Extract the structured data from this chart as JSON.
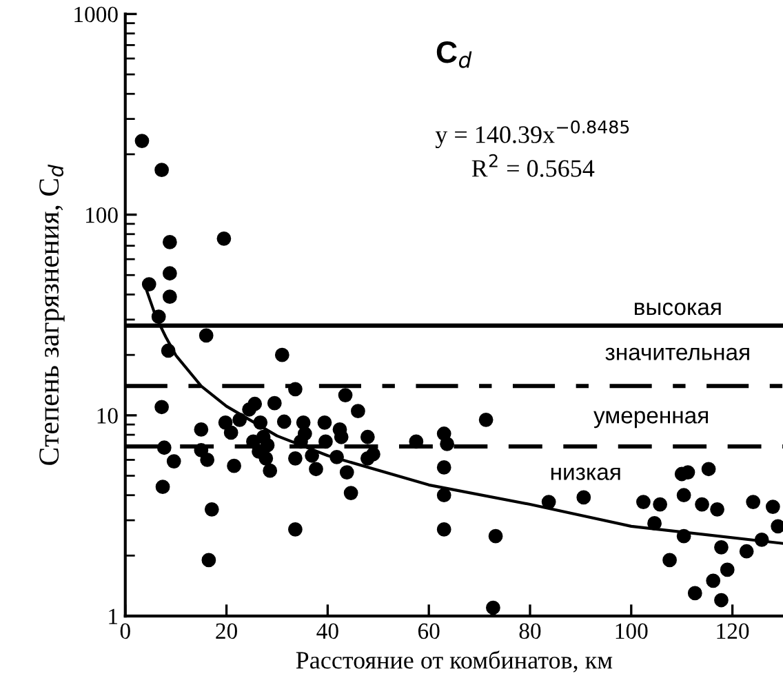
{
  "chart_data": {
    "type": "scatter",
    "title": "C$_{d}$",
    "xlabel": "Расстояние от комбинатов, км",
    "ylabel": "Степень загрязнения, C$_{d}$",
    "log": "y",
    "xlim": [
      0,
      130
    ],
    "ylim": [
      1,
      1000
    ],
    "xticks": [
      0,
      20,
      40,
      60,
      80,
      100,
      120
    ],
    "yticks": [
      1,
      10,
      100,
      1000
    ],
    "grid": false,
    "legend": false,
    "marker": "circle",
    "series": [
      {
        "color": "#000000",
        "x": [
          3.3,
          7.2,
          8.8,
          19.5,
          8.8,
          4.7,
          8.8,
          6.6,
          8.5,
          16,
          31,
          33.6,
          43.5,
          46,
          7.2,
          15,
          19.8,
          20.9,
          22.6,
          24.5,
          25.6,
          26.7,
          29.5,
          31.4,
          35.2,
          39.4,
          42.4,
          47.9,
          57.5,
          7.7,
          9.6,
          15,
          16.2,
          21.5,
          25.3,
          26.4,
          27.8,
          28.6,
          28.1,
          27.3,
          33.6,
          34.7,
          35.5,
          36.9,
          37.7,
          39.6,
          41.8,
          42.7,
          43.8,
          47.9,
          49,
          7.4,
          17.1,
          44.6,
          33.6,
          16.5,
          63,
          63.6,
          63,
          63,
          63,
          71.3,
          73.2,
          72.7,
          83.7,
          90.6,
          102.4,
          105.7,
          104.6,
          107.6,
          110,
          111.2,
          115.3,
          110.4,
          114,
          117,
          110.4,
          117.8,
          119,
          116.2,
          112.6,
          117.8,
          124.1,
          128,
          122.8,
          125.8,
          129
        ],
        "values": [
          233,
          167,
          73,
          76,
          51,
          45,
          39,
          31,
          21,
          25,
          20,
          13.5,
          12.6,
          10.5,
          11,
          8.5,
          9.2,
          8.2,
          9.5,
          10.7,
          11.4,
          9.2,
          11.5,
          9.3,
          9.2,
          9.2,
          8.5,
          7.8,
          7.4,
          6.9,
          5.9,
          6.7,
          6.0,
          5.6,
          7.4,
          6.6,
          6.1,
          5.3,
          7.1,
          7.8,
          6.1,
          7.4,
          8.1,
          6.3,
          5.4,
          7.4,
          6.2,
          7.8,
          5.2,
          6.1,
          6.4,
          4.4,
          3.4,
          4.1,
          2.7,
          1.9,
          8.1,
          7.2,
          5.5,
          4.0,
          2.7,
          9.5,
          2.5,
          1.1,
          3.7,
          3.9,
          3.7,
          3.6,
          2.9,
          1.9,
          5.1,
          5.2,
          5.4,
          4.0,
          3.6,
          3.4,
          2.5,
          2.2,
          1.7,
          1.5,
          1.3,
          1.2,
          3.7,
          3.5,
          2.1,
          2.4,
          2.8
        ]
      },
      {
        "type": "line",
        "color": "#000000",
        "marker": "none",
        "line_style": "solid",
        "x": [
          4,
          6,
          8,
          10,
          15,
          20,
          30,
          40,
          60,
          80,
          100,
          130
        ],
        "values": [
          43.5,
          31.2,
          24.6,
          19.9,
          14.0,
          11.1,
          7.9,
          6.3,
          4.5,
          3.6,
          2.8,
          2.3
        ]
      }
    ],
    "ref_lines": [
      {
        "axis": "y",
        "value": 28,
        "color": "#000000",
        "line_style": "solid"
      },
      {
        "axis": "y",
        "value": 14,
        "color": "#000000",
        "line_style": "dashdot"
      },
      {
        "axis": "y",
        "value": 7,
        "color": "#000000",
        "line_style": "dashed"
      }
    ],
    "annotations": [
      "y = 140.39x$^{−0.8485}$",
      "R$^{2}$ = 0.5654",
      "высокая",
      "значительная",
      "умеренная",
      "низкая"
    ]
  }
}
